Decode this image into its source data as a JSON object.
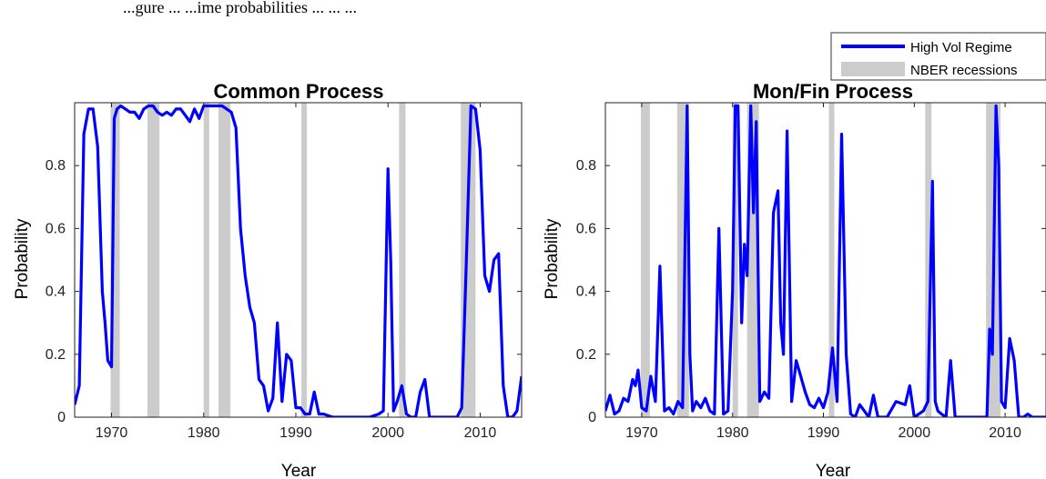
{
  "caption_fragment": "...gure ... ...ime probabilities ... ... ...",
  "legend": {
    "line_label": "High Vol Regime",
    "band_label": "NBER recessions",
    "line_color": "#0000ff",
    "band_color": "#cccccc"
  },
  "chart_data": [
    {
      "type": "line",
      "title": "Common Process",
      "xlabel": "Year",
      "ylabel": "Probability",
      "xlim": [
        1966,
        2014.5
      ],
      "ylim": [
        0,
        1
      ],
      "xticks": [
        1970,
        1980,
        1990,
        2000,
        2010
      ],
      "yticks": [
        0,
        0.2,
        0.4,
        0.6,
        0.8
      ],
      "grid": false,
      "series": [
        {
          "name": "High Vol Regime",
          "color": "#0000ff",
          "x": [
            1966.0,
            1966.5,
            1967.0,
            1967.5,
            1968.0,
            1968.5,
            1969.0,
            1969.3,
            1969.6,
            1970.0,
            1970.3,
            1970.6,
            1971.0,
            1971.5,
            1972.0,
            1972.5,
            1973.0,
            1973.5,
            1974.0,
            1974.5,
            1975.0,
            1975.5,
            1976.0,
            1976.5,
            1977.0,
            1977.5,
            1978.0,
            1978.5,
            1979.0,
            1979.5,
            1980.0,
            1980.5,
            1981.0,
            1981.5,
            1982.0,
            1982.5,
            1983.0,
            1983.5,
            1984.0,
            1984.5,
            1985.0,
            1985.5,
            1986.0,
            1986.5,
            1987.0,
            1987.5,
            1988.0,
            1988.5,
            1989.0,
            1989.5,
            1990.0,
            1990.5,
            1991.0,
            1991.5,
            1992.0,
            1992.5,
            1993.0,
            1994.0,
            1995.0,
            1996.0,
            1997.0,
            1998.0,
            1999.0,
            1999.5,
            2000.0,
            2000.3,
            2000.6,
            2001.0,
            2001.5,
            2002.0,
            2002.5,
            2003.0,
            2003.5,
            2004.0,
            2004.5,
            2005.0,
            2005.5,
            2006.0,
            2006.5,
            2007.0,
            2007.5,
            2008.0,
            2008.5,
            2009.0,
            2009.5,
            2010.0,
            2010.5,
            2011.0,
            2011.5,
            2012.0,
            2012.5,
            2013.0,
            2013.5,
            2014.0,
            2014.5
          ],
          "values": [
            0.04,
            0.1,
            0.9,
            0.98,
            0.98,
            0.86,
            0.4,
            0.3,
            0.18,
            0.16,
            0.95,
            0.98,
            0.99,
            0.98,
            0.97,
            0.97,
            0.95,
            0.98,
            0.99,
            0.99,
            0.97,
            0.96,
            0.97,
            0.96,
            0.98,
            0.98,
            0.96,
            0.94,
            0.98,
            0.95,
            0.99,
            0.99,
            0.99,
            0.99,
            0.99,
            0.98,
            0.97,
            0.92,
            0.6,
            0.45,
            0.35,
            0.3,
            0.12,
            0.1,
            0.02,
            0.06,
            0.3,
            0.05,
            0.2,
            0.18,
            0.03,
            0.03,
            0.01,
            0.01,
            0.08,
            0.01,
            0.01,
            0.0,
            0.0,
            0.0,
            0.0,
            0.0,
            0.01,
            0.02,
            0.79,
            0.5,
            0.02,
            0.05,
            0.1,
            0.01,
            0.0,
            0.0,
            0.08,
            0.12,
            0.0,
            0.0,
            0.0,
            0.0,
            0.0,
            0.0,
            0.0,
            0.03,
            0.5,
            0.99,
            0.98,
            0.85,
            0.45,
            0.4,
            0.5,
            0.52,
            0.1,
            0.0,
            0.0,
            0.02,
            0.13
          ]
        }
      ],
      "recessions": [
        [
          1969.9,
          1970.9
        ],
        [
          1973.9,
          1975.2
        ],
        [
          1980.0,
          1980.6
        ],
        [
          1981.6,
          1982.9
        ],
        [
          1990.6,
          1991.2
        ],
        [
          2001.2,
          2001.9
        ],
        [
          2007.9,
          2009.5
        ]
      ]
    },
    {
      "type": "line",
      "title": "Mon/Fin Process",
      "xlabel": "Year",
      "ylabel": "Probability",
      "xlim": [
        1966,
        2014.5
      ],
      "ylim": [
        0,
        1
      ],
      "xticks": [
        1970,
        1980,
        1990,
        2000,
        2010
      ],
      "yticks": [
        0,
        0.2,
        0.4,
        0.6,
        0.8
      ],
      "grid": false,
      "series": [
        {
          "name": "High Vol Regime",
          "color": "#0000ff",
          "x": [
            1966.0,
            1966.5,
            1967.0,
            1967.5,
            1968.0,
            1968.5,
            1969.0,
            1969.3,
            1969.6,
            1970.0,
            1970.5,
            1971.0,
            1971.5,
            1972.0,
            1972.5,
            1973.0,
            1973.5,
            1974.0,
            1974.5,
            1975.0,
            1975.3,
            1975.6,
            1976.0,
            1976.5,
            1977.0,
            1977.5,
            1978.0,
            1978.5,
            1979.0,
            1979.5,
            1980.0,
            1980.3,
            1980.6,
            1981.0,
            1981.3,
            1981.6,
            1982.0,
            1982.3,
            1982.6,
            1983.0,
            1983.5,
            1984.0,
            1984.5,
            1985.0,
            1985.3,
            1985.6,
            1986.0,
            1986.5,
            1987.0,
            1987.5,
            1988.0,
            1988.5,
            1989.0,
            1989.5,
            1990.0,
            1990.5,
            1991.0,
            1991.5,
            1992.0,
            1992.5,
            1993.0,
            1993.5,
            1994.0,
            1995.0,
            1995.5,
            1996.0,
            1997.0,
            1998.0,
            1999.0,
            1999.5,
            2000.0,
            2001.0,
            2001.5,
            2002.0,
            2002.3,
            2002.6,
            2003.0,
            2003.5,
            2004.0,
            2004.5,
            2005.0,
            2006.0,
            2007.0,
            2008.0,
            2008.3,
            2008.6,
            2009.0,
            2009.3,
            2009.6,
            2010.0,
            2010.5,
            2011.0,
            2011.5,
            2012.0,
            2012.5,
            2013.0,
            2013.5,
            2014.0,
            2014.5
          ],
          "values": [
            0.02,
            0.07,
            0.01,
            0.02,
            0.06,
            0.05,
            0.12,
            0.1,
            0.15,
            0.03,
            0.02,
            0.13,
            0.05,
            0.48,
            0.02,
            0.03,
            0.01,
            0.05,
            0.03,
            0.99,
            0.2,
            0.02,
            0.05,
            0.03,
            0.06,
            0.02,
            0.01,
            0.6,
            0.01,
            0.02,
            0.4,
            0.99,
            0.99,
            0.3,
            0.55,
            0.45,
            0.99,
            0.65,
            0.94,
            0.05,
            0.08,
            0.06,
            0.65,
            0.72,
            0.3,
            0.2,
            0.91,
            0.05,
            0.18,
            0.13,
            0.08,
            0.04,
            0.03,
            0.06,
            0.03,
            0.08,
            0.22,
            0.05,
            0.9,
            0.2,
            0.01,
            0.0,
            0.04,
            0.0,
            0.07,
            0.0,
            0.0,
            0.05,
            0.04,
            0.1,
            0.0,
            0.02,
            0.05,
            0.75,
            0.05,
            0.02,
            0.01,
            0.0,
            0.18,
            0.0,
            0.0,
            0.0,
            0.0,
            0.0,
            0.28,
            0.2,
            0.99,
            0.8,
            0.05,
            0.03,
            0.25,
            0.18,
            0.0,
            0.0,
            0.01,
            0.0,
            0.0,
            0.0,
            0.0
          ],
          "values_note": ""
        }
      ],
      "recessions": [
        [
          1969.9,
          1970.9
        ],
        [
          1973.9,
          1975.2
        ],
        [
          1980.0,
          1980.6
        ],
        [
          1981.6,
          1982.9
        ],
        [
          1990.6,
          1991.2
        ],
        [
          2001.2,
          2001.9
        ],
        [
          2007.9,
          2009.5
        ]
      ]
    }
  ]
}
